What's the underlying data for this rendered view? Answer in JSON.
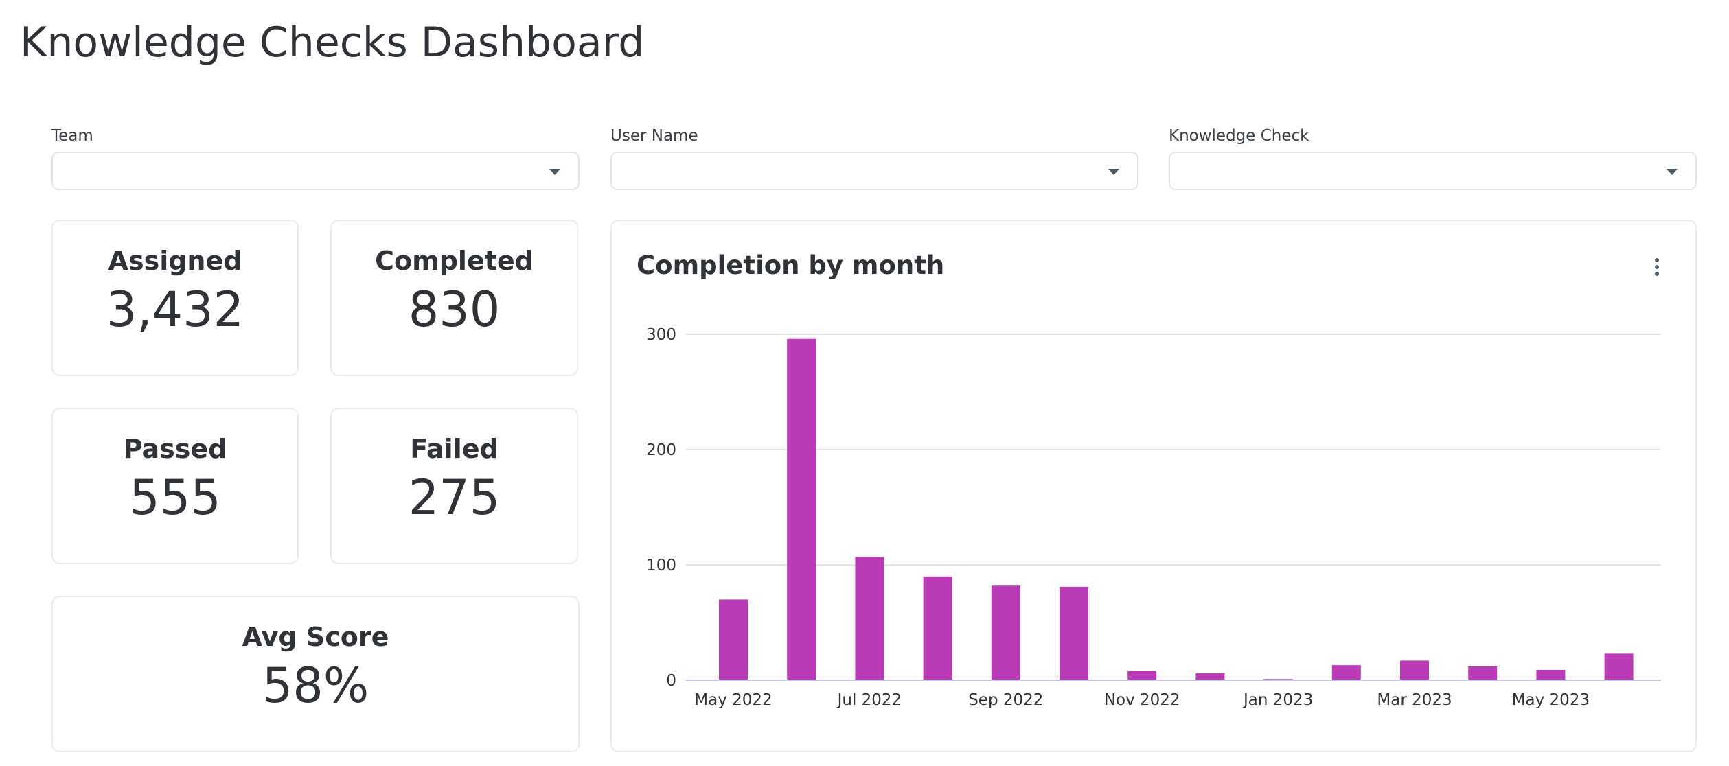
{
  "page": {
    "title": "Knowledge Checks Dashboard"
  },
  "filters": [
    {
      "label": "Team",
      "value": ""
    },
    {
      "label": "User Name",
      "value": ""
    },
    {
      "label": "Knowledge Check",
      "value": ""
    }
  ],
  "kpis": {
    "assigned": {
      "label": "Assigned",
      "value": "3,432"
    },
    "completed": {
      "label": "Completed",
      "value": "830"
    },
    "passed": {
      "label": "Passed",
      "value": "555"
    },
    "failed": {
      "label": "Failed",
      "value": "275"
    },
    "avg_score": {
      "label": "Avg Score",
      "value": "58%"
    }
  },
  "icons": {
    "filter_caret": "chevron-down-icon",
    "chart_menu": "more-vertical-icon"
  },
  "colors": {
    "bar": "#bb3ab5",
    "grid": "#e3e6e9",
    "axis": "#c7c3ea"
  },
  "chart_data": {
    "type": "bar",
    "title": "Completion by month",
    "xlabel": "",
    "ylabel": "",
    "ylim": [
      0,
      300
    ],
    "yticks": [
      0,
      100,
      200,
      300
    ],
    "grid": true,
    "categories": [
      "May 2022",
      "Jun 2022",
      "Jul 2022",
      "Aug 2022",
      "Sep 2022",
      "Oct 2022",
      "Nov 2022",
      "Dec 2022",
      "Jan 2023",
      "Feb 2023",
      "Mar 2023",
      "Apr 2023",
      "May 2023",
      "Jun 2023"
    ],
    "xtick_labels": [
      "May 2022",
      "Jul 2022",
      "Sep 2022",
      "Nov 2022",
      "Jan 2023",
      "Mar 2023",
      "May 2023"
    ],
    "values": [
      70,
      296,
      107,
      90,
      82,
      81,
      8,
      6,
      1,
      13,
      17,
      12,
      9,
      23
    ]
  }
}
